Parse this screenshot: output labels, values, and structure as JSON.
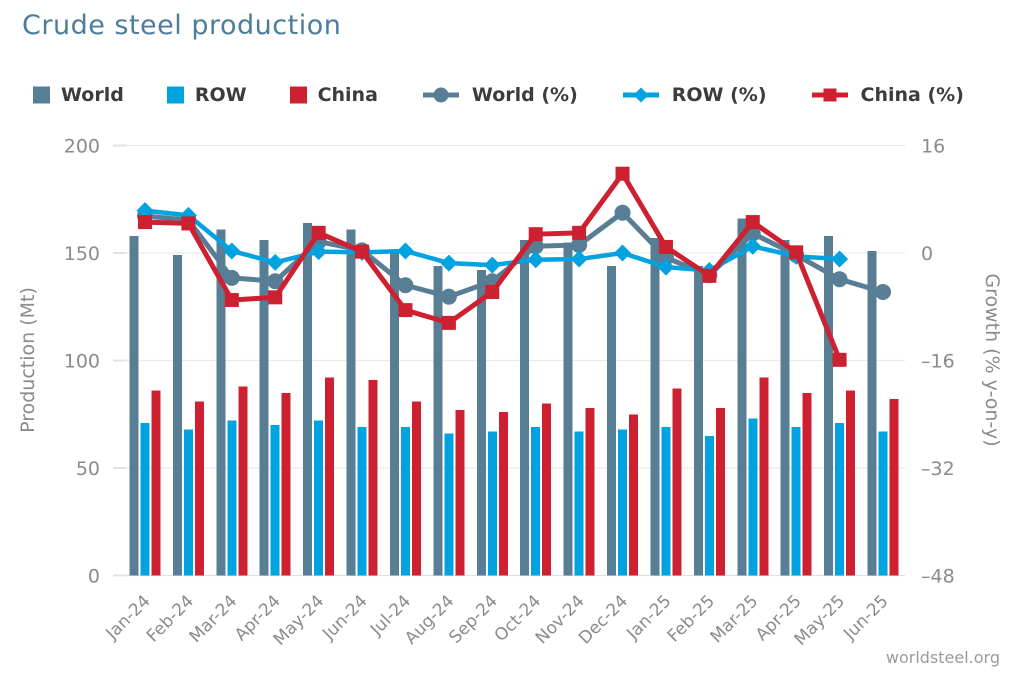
{
  "title": "Crude steel production",
  "footer": {
    "text": "worldsteel.org"
  },
  "palette": {
    "title_text": "#4c7d9d",
    "axis_text": "#8b8b8b",
    "legend_text": "#3c3c3c",
    "grid": "#e9e9ed",
    "baseline": "#dde1e7",
    "footer_text": "#9b9b9b",
    "world": "#587e96",
    "row": "#00a2e0",
    "china": "#cd2030"
  },
  "legend": {
    "items": [
      {
        "label": "World",
        "marker": "square",
        "color": "#587e96"
      },
      {
        "label": "ROW",
        "marker": "square",
        "color": "#00a2e0"
      },
      {
        "label": "China",
        "marker": "square",
        "color": "#cd2030"
      },
      {
        "label": "World (%)",
        "marker": "line-circle",
        "color": "#587e96"
      },
      {
        "label": "ROW (%)",
        "marker": "line-diamond",
        "color": "#00a2e0"
      },
      {
        "label": "China (%)",
        "marker": "line-square",
        "color": "#cd2030"
      }
    ]
  },
  "chart_data": {
    "type": "combo-bar-line",
    "categories": [
      "Jan-24",
      "Feb-24",
      "Mar-24",
      "Apr-24",
      "May-24",
      "Jun-24",
      "Jul-24",
      "Aug-24",
      "Sep-24",
      "Oct-24",
      "Nov-24",
      "Dec-24",
      "Jan-25",
      "Feb-25",
      "Mar-25",
      "Apr-25",
      "May-25",
      "Jun-25"
    ],
    "bar_series": [
      {
        "name": "World",
        "color": "#587e96",
        "axis": "left",
        "values": [
          158,
          149,
          161,
          156,
          164,
          161,
          150,
          144,
          142,
          156,
          155,
          144,
          157,
          144,
          166,
          156,
          158,
          151
        ]
      },
      {
        "name": "ROW",
        "color": "#00a2e0",
        "axis": "left",
        "values": [
          71,
          68,
          72,
          70,
          72,
          69,
          69,
          66,
          67,
          69,
          67,
          68,
          69,
          65,
          73,
          69,
          71,
          67
        ]
      },
      {
        "name": "China",
        "color": "#cd2030",
        "axis": "left",
        "values": [
          86,
          81,
          88,
          85,
          92,
          91,
          81,
          77,
          76,
          80,
          78,
          75,
          87,
          78,
          92,
          85,
          86,
          82
        ]
      }
    ],
    "line_series": [
      {
        "name": "World (%)",
        "color": "#587e96",
        "marker": "circle",
        "axis": "right",
        "values": [
          5.5,
          4.9,
          -3.7,
          -4.2,
          1.7,
          0.4,
          -4.8,
          -6.5,
          -4.2,
          1.0,
          1.2,
          6.0,
          -0.7,
          -3.3,
          2.9,
          -0.3,
          -3.9,
          -5.8
        ]
      },
      {
        "name": "ROW (%)",
        "color": "#00a2e0",
        "marker": "diamond",
        "axis": "right",
        "values": [
          6.3,
          5.6,
          0.3,
          -1.4,
          0.2,
          0.1,
          0.3,
          -1.5,
          -1.8,
          -1.0,
          -0.9,
          0.0,
          -2.1,
          -2.6,
          1.0,
          -0.5,
          -0.9,
          null
        ]
      },
      {
        "name": "China (%)",
        "color": "#cd2030",
        "marker": "square",
        "axis": "right",
        "values": [
          4.6,
          4.4,
          -7.0,
          -6.6,
          3.0,
          0.2,
          -8.5,
          -10.4,
          -5.8,
          2.8,
          3.0,
          11.8,
          0.9,
          -3.4,
          4.6,
          0.1,
          -15.9,
          null
        ]
      }
    ],
    "left_axis": {
      "title": "Production (Mt)",
      "ticks": [
        "200",
        "150",
        "100",
        "50",
        "0"
      ],
      "range": [
        0,
        200
      ]
    },
    "right_axis": {
      "title": "Growth (% y-on-y)",
      "ticks": [
        "16",
        "0",
        "-16",
        "-32",
        "-48"
      ],
      "range": [
        -48,
        16
      ]
    },
    "grid": true,
    "legend_position": "top"
  }
}
